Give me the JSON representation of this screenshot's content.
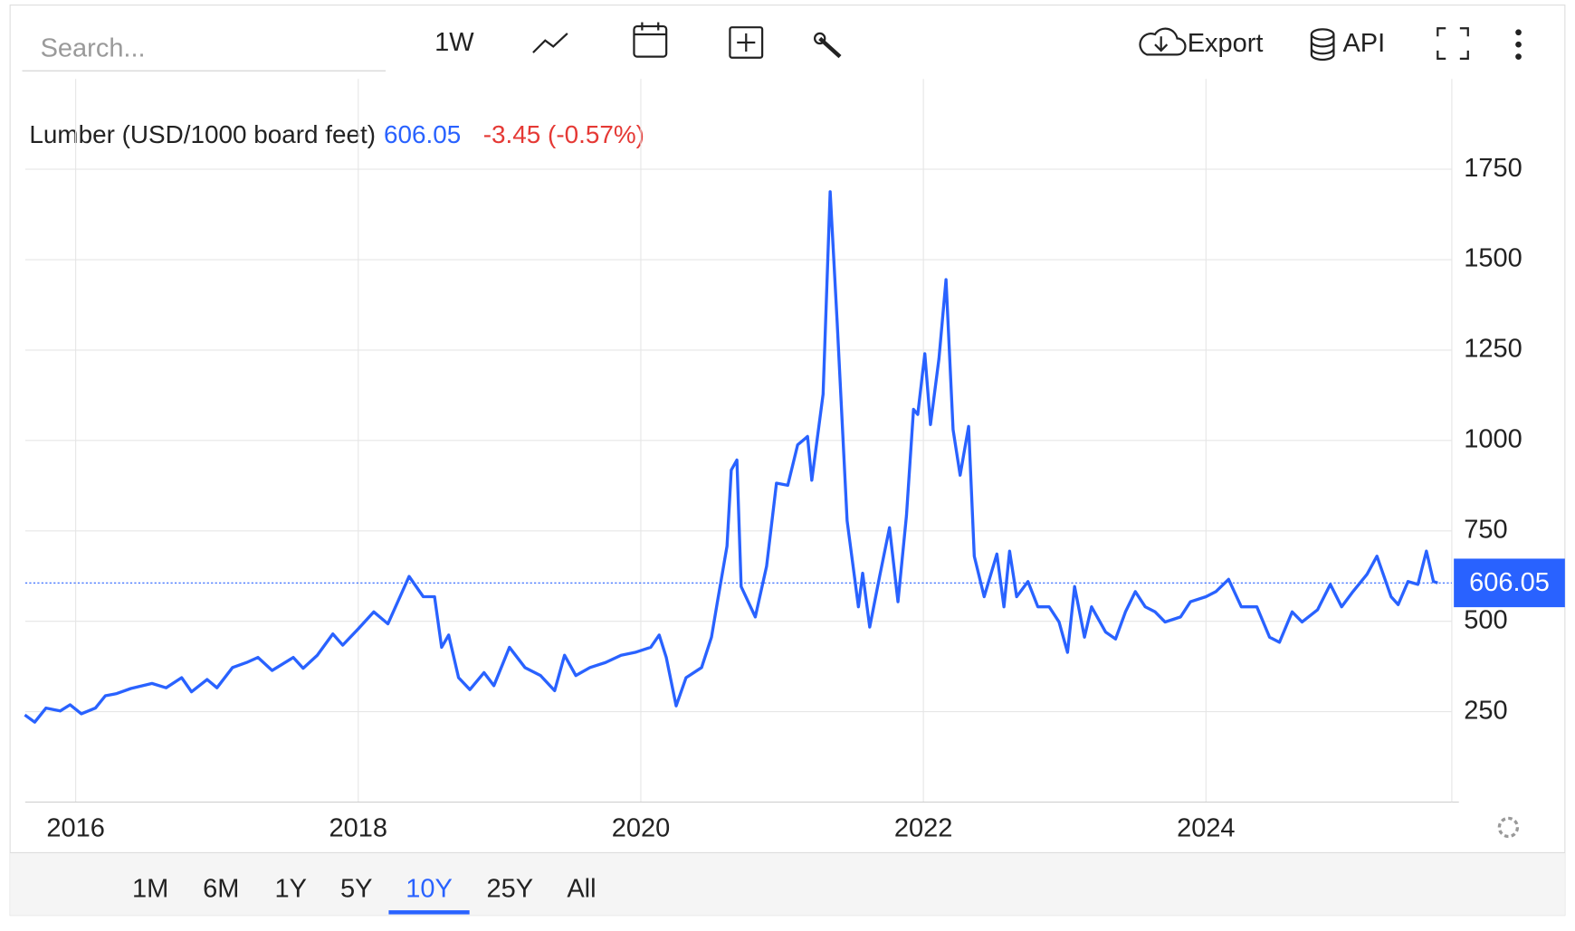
{
  "toolbar": {
    "search_placeholder": "Search...",
    "interval": "1W",
    "export": "Export",
    "api": "API"
  },
  "ranges": {
    "options": [
      "1M",
      "6M",
      "1Y",
      "5Y",
      "10Y",
      "25Y",
      "All"
    ],
    "active": 4
  },
  "chart_data": {
    "type": "line",
    "last": 606.05,
    "change": "-3.45 (-0.57%)",
    "xlim": [
      2015.643,
      2025.74
    ],
    "xticks": [
      2016,
      2018,
      2020,
      2022,
      2024
    ],
    "ylim": [
      0,
      2000
    ],
    "yticks": [
      250,
      500,
      750,
      1000,
      1250,
      1500,
      1750
    ],
    "grid": true,
    "series": [
      {
        "name": "Lumber (USD/1000 board feet)",
        "color": "#2962ff",
        "x": [
          2015.64,
          2015.71,
          2015.79,
          2015.89,
          2015.96,
          2016.04,
          2016.14,
          2016.21,
          2016.29,
          2016.39,
          2016.54,
          2016.64,
          2016.75,
          2016.82,
          2016.93,
          2017.0,
          2017.11,
          2017.21,
          2017.29,
          2017.39,
          2017.54,
          2017.61,
          2017.71,
          2017.82,
          2017.89,
          2018.0,
          2018.11,
          2018.21,
          2018.36,
          2018.46,
          2018.54,
          2018.59,
          2018.64,
          2018.71,
          2018.79,
          2018.89,
          2018.96,
          2019.07,
          2019.18,
          2019.29,
          2019.39,
          2019.46,
          2019.54,
          2019.64,
          2019.75,
          2019.86,
          2019.96,
          2020.07,
          2020.13,
          2020.18,
          2020.25,
          2020.32,
          2020.43,
          2020.5,
          2020.54,
          2020.61,
          2020.64,
          2020.68,
          2020.71,
          2020.81,
          2020.89,
          2020.96,
          2021.04,
          2021.11,
          2021.18,
          2021.21,
          2021.29,
          2021.34,
          2021.39,
          2021.46,
          2021.54,
          2021.57,
          2021.62,
          2021.69,
          2021.76,
          2021.82,
          2021.88,
          2021.93,
          2021.96,
          2022.01,
          2022.05,
          2022.11,
          2022.16,
          2022.21,
          2022.26,
          2022.32,
          2022.36,
          2022.43,
          2022.52,
          2022.57,
          2022.61,
          2022.66,
          2022.74,
          2022.81,
          2022.89,
          2022.96,
          2023.02,
          2023.07,
          2023.14,
          2023.19,
          2023.29,
          2023.36,
          2023.43,
          2023.5,
          2023.57,
          2023.64,
          2023.71,
          2023.82,
          2023.89,
          2024.0,
          2024.07,
          2024.16,
          2024.25,
          2024.36,
          2024.45,
          2024.52,
          2024.61,
          2024.68,
          2024.79,
          2024.88,
          2024.96,
          2025.04,
          2025.14,
          2025.21,
          2025.31,
          2025.36,
          2025.43,
          2025.5,
          2025.56,
          2025.61,
          2025.64
        ],
        "values": [
          241,
          221,
          260,
          252,
          269,
          244,
          260,
          294,
          300,
          314,
          328,
          316,
          344,
          305,
          339,
          316,
          372,
          386,
          400,
          364,
          400,
          370,
          406,
          465,
          434,
          479,
          526,
          493,
          624,
          568,
          568,
          428,
          462,
          344,
          311,
          358,
          322,
          428,
          372,
          350,
          308,
          406,
          350,
          372,
          386,
          406,
          414,
          428,
          462,
          400,
          266,
          344,
          372,
          456,
          549,
          708,
          918,
          946,
          596,
          512,
          652,
          882,
          876,
          988,
          1011,
          890,
          1128,
          1688,
          1324,
          778,
          540,
          633,
          484,
          624,
          759,
          554,
          792,
          1086,
          1072,
          1240,
          1044,
          1226,
          1445,
          1030,
          904,
          1039,
          680,
          568,
          686,
          540,
          694,
          568,
          610,
          540,
          540,
          498,
          414,
          596,
          456,
          540,
          470,
          451,
          526,
          582,
          540,
          526,
          498,
          512,
          554,
          568,
          582,
          616,
          540,
          540,
          456,
          442,
          526,
          498,
          532,
          602,
          540,
          582,
          630,
          680,
          568,
          546,
          610,
          602,
          694,
          610,
          606.05
        ]
      }
    ]
  }
}
